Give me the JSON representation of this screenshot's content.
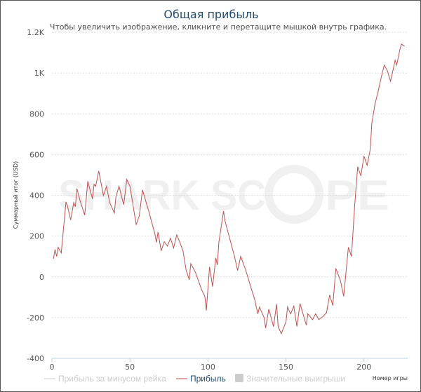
{
  "chart_data": {
    "type": "line",
    "title": "Общая прибыль",
    "subtitle": "Чтобы увеличить изображение, кликните и перетащите мышкой внутрь графика.",
    "xlabel": "Номер игры",
    "ylabel": "Суммарный итог (USD)",
    "xlim": [
      0,
      228
    ],
    "ylim": [
      -400,
      1200
    ],
    "xticks": [
      0,
      50,
      100,
      150,
      200
    ],
    "yticks": [
      -400,
      -200,
      0,
      200,
      400,
      600,
      800,
      1000,
      1200
    ],
    "ytick_labels": [
      "-400",
      "-200",
      "0",
      "200",
      "400",
      "600",
      "800",
      "1K",
      "1.2K"
    ],
    "grid": true,
    "watermark": "SHARK SCOPE",
    "legend": {
      "placement": "bottom",
      "items": [
        {
          "label": "Прибыль за минусом рейка",
          "active": false,
          "color": "#cccccc"
        },
        {
          "label": "Прибыль",
          "active": true,
          "color": "#b94a48"
        },
        {
          "label": "Значительные выигрыши",
          "active": false,
          "color": "#cccccc"
        }
      ]
    },
    "series": [
      {
        "name": "Прибыль",
        "color": "#c0504d",
        "x": [
          1,
          2,
          3,
          4,
          6,
          9,
          10,
          12,
          14,
          15,
          16,
          18,
          21,
          23,
          26,
          27,
          28,
          30,
          33,
          35,
          37,
          40,
          41,
          43,
          46,
          48,
          50,
          52,
          54,
          56,
          58,
          62,
          66,
          67,
          68,
          70,
          72,
          74,
          76,
          78,
          80,
          82,
          84,
          86,
          88,
          89,
          92,
          96,
          98,
          99,
          101,
          103,
          105,
          106,
          107,
          110,
          111,
          114,
          117,
          119,
          121,
          124,
          127,
          130,
          132,
          133,
          136,
          137,
          139,
          142,
          144,
          145,
          147,
          150,
          151,
          153,
          155,
          157,
          159,
          163,
          164,
          167,
          169,
          171,
          174,
          176,
          178,
          180,
          182,
          185,
          187,
          190,
          192,
          194,
          196,
          198,
          200,
          202,
          204,
          205,
          207,
          209,
          211,
          213,
          215,
          217,
          218,
          220,
          221,
          223,
          224,
          226
        ],
        "y": [
          89,
          134,
          100,
          145,
          117,
          368,
          347,
          279,
          365,
          344,
          433,
          375,
          303,
          468,
          382,
          454,
          444,
          519,
          399,
          444,
          365,
          313,
          392,
          444,
          354,
          478,
          444,
          351,
          255,
          299,
          427,
          323,
          210,
          169,
          220,
          127,
          172,
          151,
          189,
          141,
          206,
          169,
          127,
          34,
          -14,
          65,
          21,
          -65,
          -96,
          -165,
          48,
          -48,
          93,
          58,
          169,
          323,
          272,
          186,
          100,
          31,
          100,
          38,
          -38,
          -113,
          -182,
          -148,
          -200,
          -251,
          -158,
          -244,
          -134,
          -244,
          -279,
          -220,
          -148,
          -182,
          -144,
          -244,
          -131,
          -237,
          -182,
          -210,
          -182,
          -210,
          -193,
          -175,
          -89,
          -141,
          41,
          -21,
          -96,
          145,
          100,
          347,
          540,
          495,
          592,
          547,
          623,
          753,
          846,
          908,
          977,
          1039,
          1011,
          960,
          994,
          1063,
          1039,
          1115,
          1142,
          1132
        ]
      }
    ]
  }
}
